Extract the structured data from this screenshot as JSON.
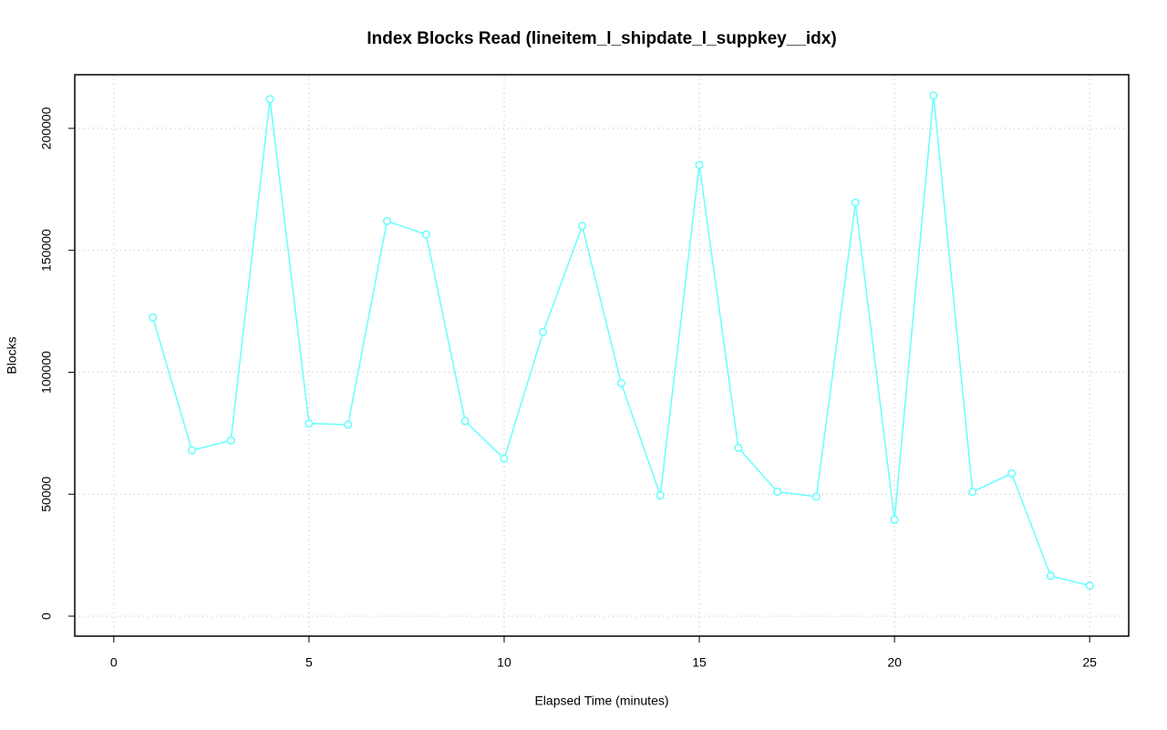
{
  "chart_data": {
    "type": "line",
    "title": "Index Blocks Read (lineitem_l_shipdate_l_suppkey__idx)",
    "x_label": "Elapsed Time (minutes)",
    "y_label": "Blocks",
    "x": [
      1,
      2,
      3,
      4,
      5,
      6,
      7,
      8,
      9,
      10,
      11,
      12,
      13,
      14,
      15,
      16,
      17,
      18,
      19,
      20,
      21,
      22,
      23,
      24,
      25
    ],
    "series": [
      {
        "name": "Blocks",
        "color": "#66ffff",
        "values": [
          122500,
          68000,
          72000,
          212000,
          79000,
          78500,
          162000,
          156500,
          80000,
          64500,
          116500,
          160000,
          95500,
          49500,
          185000,
          69000,
          51000,
          49000,
          169500,
          39500,
          213500,
          51000,
          58500,
          16500,
          12500
        ]
      }
    ],
    "xlim": [
      -1,
      26
    ],
    "xticks": [
      0,
      5,
      10,
      15,
      20,
      25
    ],
    "ylim": [
      -8200,
      222000
    ],
    "yticks": [
      0,
      50000,
      100000,
      150000,
      200000
    ],
    "grid": true
  }
}
